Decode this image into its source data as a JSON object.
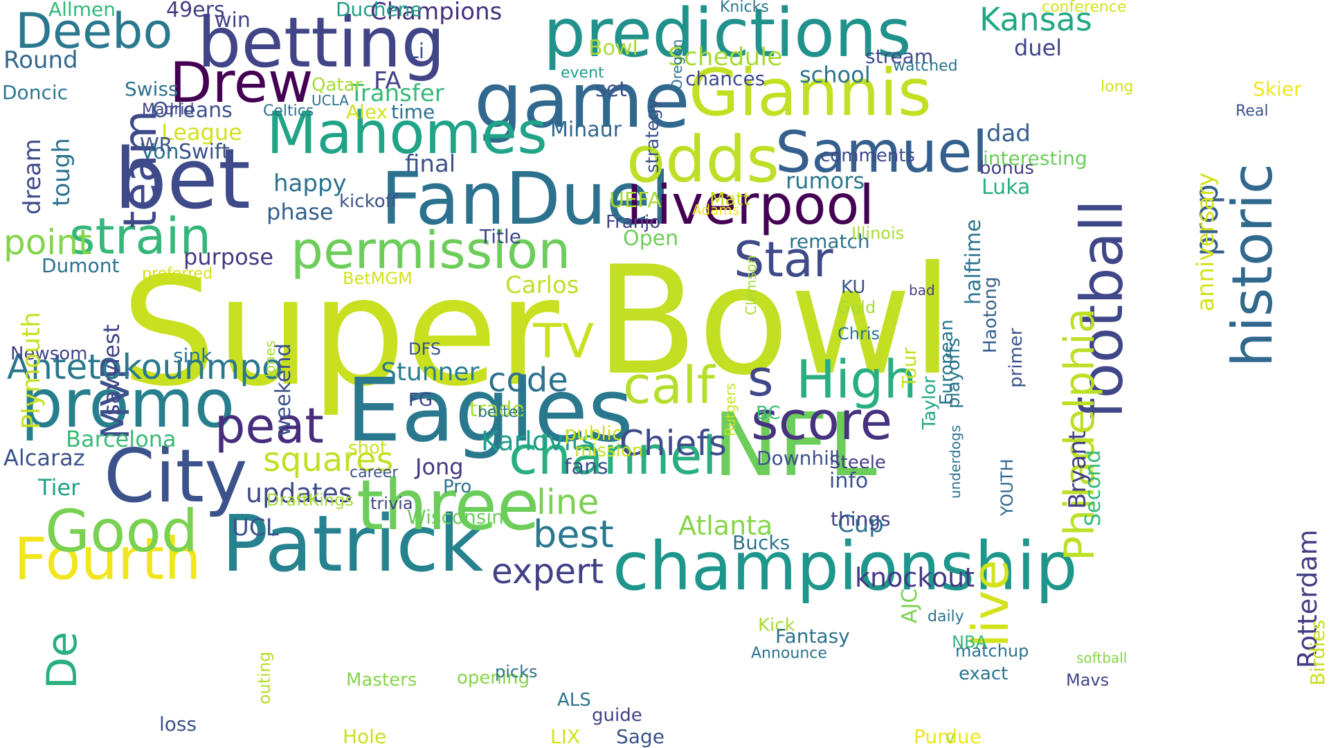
{
  "words": [
    {
      "text": "Super",
      "color": "#c8e020",
      "rotate": false
    },
    {
      "text": "Bowl",
      "color": "#c2df23",
      "rotate": false
    },
    {
      "text": "Eagles",
      "color": "#2a788e",
      "rotate": false
    },
    {
      "text": "NFL",
      "color": "#6ccd5a",
      "rotate": false
    },
    {
      "text": "bet",
      "color": "#3e4a89",
      "rotate": false
    },
    {
      "text": "predictions",
      "color": "#21918c",
      "rotate": false
    },
    {
      "text": "game",
      "color": "#31688e",
      "rotate": false
    },
    {
      "text": "championship",
      "color": "#1f968b",
      "rotate": false
    },
    {
      "text": "Patrick",
      "color": "#26828e",
      "rotate": false
    },
    {
      "text": "City",
      "color": "#3b528b",
      "rotate": false
    },
    {
      "text": "FanDuel",
      "color": "#2c728e",
      "rotate": false
    },
    {
      "text": "Liverpool",
      "color": "#440154",
      "rotate": false
    },
    {
      "text": "betting",
      "color": "#414487",
      "rotate": false
    },
    {
      "text": "Giannis",
      "color": "#c2df23",
      "rotate": false
    },
    {
      "text": "odds",
      "color": "#bddf26",
      "rotate": false
    },
    {
      "text": "three",
      "color": "#6ccd5a",
      "rotate": false
    },
    {
      "text": "football",
      "color": "#3f4788",
      "rotate": true
    },
    {
      "text": "historic",
      "color": "#31688e",
      "rotate": true
    },
    {
      "text": "promo",
      "color": "#277f8e",
      "rotate": false
    },
    {
      "text": "Mahomes",
      "color": "#20a386",
      "rotate": false
    },
    {
      "text": "Samuel",
      "color": "#355f8d",
      "rotate": false
    },
    {
      "text": "Drew",
      "color": "#440154",
      "rotate": false
    },
    {
      "text": "Deebo",
      "color": "#2a788e",
      "rotate": false
    },
    {
      "text": "permission",
      "color": "#6ccd5a",
      "rotate": false
    },
    {
      "text": "strain",
      "color": "#35b779",
      "rotate": false
    },
    {
      "text": "channel",
      "color": "#28ae80",
      "rotate": false
    },
    {
      "text": "score",
      "color": "#46327e",
      "rotate": false
    },
    {
      "text": "Fourth",
      "color": "#f1e51d",
      "rotate": false
    },
    {
      "text": "Good",
      "color": "#7ad151",
      "rotate": false
    },
    {
      "text": "calf",
      "color": "#b5de2b",
      "rotate": false
    },
    {
      "text": "High",
      "color": "#28ae80",
      "rotate": false
    },
    {
      "text": "peat",
      "color": "#472d7b",
      "rotate": false
    },
    {
      "text": "Star",
      "color": "#3e4a89",
      "rotate": false
    },
    {
      "text": "TV",
      "color": "#c8e020",
      "rotate": false
    },
    {
      "text": "live",
      "color": "#d2e21b",
      "rotate": true
    },
    {
      "text": "s",
      "color": "#3f4788",
      "rotate": false
    },
    {
      "text": "team",
      "color": "#3e4989",
      "rotate": true
    },
    {
      "text": "MVP",
      "color": "#3b528b",
      "rotate": true
    },
    {
      "text": "De",
      "color": "#29af7f",
      "rotate": true
    },
    {
      "text": "Antetokounmpo",
      "color": "#2a788e",
      "rotate": false
    },
    {
      "text": "Chiefs",
      "color": "#3e4a89",
      "rotate": false
    },
    {
      "text": "Philadelphia",
      "color": "#bddf26",
      "rotate": true
    },
    {
      "text": "expert",
      "color": "#424086",
      "rotate": false
    },
    {
      "text": "best",
      "color": "#2a788e",
      "rotate": false
    },
    {
      "text": "squares",
      "color": "#c2df23",
      "rotate": false
    },
    {
      "text": "code",
      "color": "#2c728e",
      "rotate": false
    },
    {
      "text": "line",
      "color": "#7ad151",
      "rotate": false
    },
    {
      "text": "point",
      "color": "#84d44b",
      "rotate": false
    },
    {
      "text": "Kansas",
      "color": "#22a785",
      "rotate": false
    },
    {
      "text": "Karlovits",
      "color": "#1f9e89",
      "rotate": false
    },
    {
      "text": "knockout",
      "color": "#443983",
      "rotate": false
    },
    {
      "text": "updates",
      "color": "#3e4a89",
      "rotate": false
    },
    {
      "text": "Atlanta",
      "color": "#86d549",
      "rotate": false
    },
    {
      "text": "prop",
      "color": "#355f8d",
      "rotate": true
    },
    {
      "text": "Barcelona",
      "color": "#3aba76",
      "rotate": false
    },
    {
      "text": "Stunner",
      "color": "#287d8e",
      "rotate": false
    },
    {
      "text": "purpose",
      "color": "#443a83",
      "rotate": false
    },
    {
      "text": "phase",
      "color": "#355f8d",
      "rotate": false
    },
    {
      "text": "final",
      "color": "#3b528b",
      "rotate": false
    },
    {
      "text": "happy",
      "color": "#2c728e",
      "rotate": false
    },
    {
      "text": "rumors",
      "color": "#2a788e",
      "rotate": false
    },
    {
      "text": "UCL",
      "color": "#3b528b",
      "rotate": false
    },
    {
      "text": "anniversary",
      "color": "#d2e21b",
      "rotate": true
    },
    {
      "text": "Rotterdam",
      "color": "#433e85",
      "rotate": true
    },
    {
      "text": "Schedule",
      "color": "#a8db34",
      "rotate": false
    },
    {
      "text": "Champions",
      "color": "#46307e",
      "rotate": false
    },
    {
      "text": "Transfer",
      "color": "#38b977",
      "rotate": false
    },
    {
      "text": "Alcaraz",
      "color": "#3b528b",
      "rotate": false
    },
    {
      "text": "Jong",
      "color": "#453781",
      "rotate": false
    },
    {
      "text": "Tier",
      "color": "#1fa187",
      "rotate": false
    },
    {
      "text": "Carlos",
      "color": "#bddf26",
      "rotate": false
    },
    {
      "text": "Round",
      "color": "#31688e",
      "rotate": false
    },
    {
      "text": "Doncic",
      "color": "#2a788e",
      "rotate": false
    },
    {
      "text": "Newsom",
      "color": "#414487",
      "rotate": false
    },
    {
      "text": "Plymouth",
      "color": "#c8e020",
      "rotate": true
    },
    {
      "text": "dream",
      "color": "#3e4a89",
      "rotate": true
    },
    {
      "text": "tough",
      "color": "#2c728e",
      "rotate": true
    },
    {
      "text": "savviest",
      "color": "#414487",
      "rotate": true
    },
    {
      "text": "weekend",
      "color": "#3b528b",
      "rotate": true
    },
    {
      "text": "Minaur",
      "color": "#31688e",
      "rotate": false
    },
    {
      "text": "dad",
      "color": "#355f8d",
      "rotate": false
    },
    {
      "text": "duel",
      "color": "#414487",
      "rotate": false
    },
    {
      "text": "school",
      "color": "#2c728e",
      "rotate": false
    },
    {
      "text": "stream",
      "color": "#3e4a89",
      "rotate": false
    },
    {
      "text": "Luka",
      "color": "#29af7f",
      "rotate": false
    },
    {
      "text": "bonus",
      "color": "#424086",
      "rotate": false
    },
    {
      "text": "rematch",
      "color": "#2c728e",
      "rotate": false
    },
    {
      "text": "Open",
      "color": "#6ccd5a",
      "rotate": false
    },
    {
      "text": "Cup",
      "color": "#2c728e",
      "rotate": false
    },
    {
      "text": "info",
      "color": "#3b528b",
      "rotate": false
    },
    {
      "text": "Steele",
      "color": "#433e85",
      "rotate": false
    },
    {
      "text": "Second",
      "color": "#35b779",
      "rotate": true
    },
    {
      "text": "Bryant",
      "color": "#433e85",
      "rotate": true
    },
    {
      "text": "playoffs",
      "color": "#2a788e",
      "rotate": true
    },
    {
      "text": "halftime",
      "color": "#2c728e",
      "rotate": true
    },
    {
      "text": "primer",
      "color": "#3b528b",
      "rotate": true
    },
    {
      "text": "Haotong",
      "color": "#355f8d",
      "rotate": true
    },
    {
      "text": "Taylor",
      "color": "#22a785",
      "rotate": true
    },
    {
      "text": "European",
      "color": "#2a788e",
      "rotate": true
    },
    {
      "text": "AJC",
      "color": "#7ad151",
      "rotate": true
    },
    {
      "text": "Tour",
      "color": "#c8e020",
      "rotate": true
    },
    {
      "text": "YOUTH",
      "color": "#31688e",
      "rotate": true
    },
    {
      "text": "underdogs",
      "color": "#2c728e",
      "rotate": true
    },
    {
      "text": "Birdies",
      "color": "#c8e020",
      "rotate": true
    },
    {
      "text": "strategy",
      "color": "#3b528b",
      "rotate": true
    },
    {
      "text": "Oregon",
      "color": "#2c728e",
      "rotate": true
    },
    {
      "text": "Clemson",
      "color": "#a8db34",
      "rotate": true
    },
    {
      "text": "Rutgers",
      "color": "#c8e020",
      "rotate": true
    },
    {
      "text": "Jones",
      "color": "#a8db34",
      "rotate": true
    },
    {
      "text": "outing",
      "color": "#b5de2b",
      "rotate": true
    },
    {
      "text": "Swift",
      "color": "#3b528b",
      "rotate": false
    },
    {
      "text": "Von",
      "color": "#2c728e",
      "rotate": false
    },
    {
      "text": "League",
      "color": "#d2e21b",
      "rotate": false
    },
    {
      "text": "Orleans",
      "color": "#3b528b",
      "rotate": false
    },
    {
      "text": "Celtics",
      "color": "#2c728e",
      "rotate": false
    },
    {
      "text": "Alex",
      "color": "#d2e21b",
      "rotate": false
    },
    {
      "text": "time",
      "color": "#2c728e",
      "rotate": false
    },
    {
      "text": "FA",
      "color": "#433e85",
      "rotate": false
    },
    {
      "text": "Qatar",
      "color": "#a8db34",
      "rotate": false
    },
    {
      "text": "UCLA",
      "color": "#2c728e",
      "rotate": false
    },
    {
      "text": "Li",
      "color": "#3b528b",
      "rotate": false
    },
    {
      "text": "win",
      "color": "#414487",
      "rotate": false
    },
    {
      "text": "49ers",
      "color": "#433e85",
      "rotate": false
    },
    {
      "text": "Allmen",
      "color": "#35b779",
      "rotate": false
    },
    {
      "text": "Duchene",
      "color": "#1f9e89",
      "rotate": false
    },
    {
      "text": "Knicks",
      "color": "#2c728e",
      "rotate": false
    },
    {
      "text": "conference",
      "color": "#d2e21b",
      "rotate": false
    },
    {
      "text": "watched",
      "color": "#2c728e",
      "rotate": false
    },
    {
      "text": "long",
      "color": "#d2e21b",
      "rotate": false
    },
    {
      "text": "Skier",
      "color": "#f1e51d",
      "rotate": false
    },
    {
      "text": "Real",
      "color": "#3b528b",
      "rotate": false
    },
    {
      "text": "chances",
      "color": "#3e4a89",
      "rotate": false
    },
    {
      "text": "event",
      "color": "#1f9e89",
      "rotate": false
    },
    {
      "text": "set",
      "color": "#3b528b",
      "rotate": false
    },
    {
      "text": "Bowl",
      "color": "#a8db34",
      "rotate": false
    },
    {
      "text": "Swiss",
      "color": "#2c728e",
      "rotate": false
    },
    {
      "text": "Madrid",
      "color": "#414487",
      "rotate": false
    },
    {
      "text": "WR",
      "color": "#3b528b",
      "rotate": false
    },
    {
      "text": "interesting",
      "color": "#6ccd5a",
      "rotate": false
    },
    {
      "text": "comments",
      "color": "#3e4a89",
      "rotate": false
    },
    {
      "text": "kickoff",
      "color": "#3b528b",
      "rotate": false
    },
    {
      "text": "Matt",
      "color": "#c8e020",
      "rotate": false
    },
    {
      "text": "Adams",
      "color": "#f1e51d",
      "rotate": false
    },
    {
      "text": "UEFA",
      "color": "#a8db34",
      "rotate": false
    },
    {
      "text": "Title",
      "color": "#3e4a89",
      "rotate": false
    },
    {
      "text": "Franjo",
      "color": "#414487",
      "rotate": false
    },
    {
      "text": "Illinois",
      "color": "#a8db34",
      "rotate": false
    },
    {
      "text": "Dumont",
      "color": "#2c728e",
      "rotate": false
    },
    {
      "text": "preferred",
      "color": "#d2e21b",
      "rotate": false
    },
    {
      "text": "BetMGM",
      "color": "#d2e21b",
      "rotate": false
    },
    {
      "text": "KU",
      "color": "#3b528b",
      "rotate": false
    },
    {
      "text": "bad",
      "color": "#433e85",
      "rotate": false
    },
    {
      "text": "Gold",
      "color": "#a8db34",
      "rotate": false
    },
    {
      "text": "Chris",
      "color": "#2c728e",
      "rotate": false
    },
    {
      "text": "sink",
      "color": "#2c728e",
      "rotate": false
    },
    {
      "text": "DFS",
      "color": "#3b528b",
      "rotate": false
    },
    {
      "text": "trade",
      "color": "#a8db34",
      "rotate": false
    },
    {
      "text": "public",
      "color": "#d2e21b",
      "rotate": false
    },
    {
      "text": "BC",
      "color": "#3aba76",
      "rotate": false
    },
    {
      "text": "FG",
      "color": "#414487",
      "rotate": false
    },
    {
      "text": "mission",
      "color": "#c8e020",
      "rotate": false
    },
    {
      "text": "fans",
      "color": "#3b528b",
      "rotate": false
    },
    {
      "text": "Downhill",
      "color": "#3b528b",
      "rotate": false
    },
    {
      "text": "shot",
      "color": "#c8e020",
      "rotate": false
    },
    {
      "text": "Pro",
      "color": "#2c728e",
      "rotate": false
    },
    {
      "text": "better",
      "color": "#2c728e",
      "rotate": false
    },
    {
      "text": "career",
      "color": "#3b528b",
      "rotate": false
    },
    {
      "text": "trivia",
      "color": "#414487",
      "rotate": false
    },
    {
      "text": "DraftKings",
      "color": "#a8db34",
      "rotate": false
    },
    {
      "text": "Wisconsin",
      "color": "#6ccd5a",
      "rotate": false
    },
    {
      "text": "things",
      "color": "#414487",
      "rotate": false
    },
    {
      "text": "Bucks",
      "color": "#2c728e",
      "rotate": false
    },
    {
      "text": "Kick",
      "color": "#a8db34",
      "rotate": false
    },
    {
      "text": "daily",
      "color": "#2c728e",
      "rotate": false
    },
    {
      "text": "NBA",
      "color": "#35b779",
      "rotate": false
    },
    {
      "text": "Fantasy",
      "color": "#2c728e",
      "rotate": false
    },
    {
      "text": "Announce",
      "color": "#2c728e",
      "rotate": false
    },
    {
      "text": "matchup",
      "color": "#2c728e",
      "rotate": false
    },
    {
      "text": "softball",
      "color": "#86d549",
      "rotate": false
    },
    {
      "text": "Mavs",
      "color": "#414487",
      "rotate": false
    },
    {
      "text": "exact",
      "color": "#2c728e",
      "rotate": false
    },
    {
      "text": "Masters",
      "color": "#86d549",
      "rotate": false
    },
    {
      "text": "opening",
      "color": "#86d549",
      "rotate": false
    },
    {
      "text": "picks",
      "color": "#2c728e",
      "rotate": false
    },
    {
      "text": "ALS",
      "color": "#2c728e",
      "rotate": false
    },
    {
      "text": "guide",
      "color": "#414487",
      "rotate": false
    },
    {
      "text": "Sage",
      "color": "#3b528b",
      "rotate": false
    },
    {
      "text": "Hole",
      "color": "#c8e020",
      "rotate": false
    },
    {
      "text": "loss",
      "color": "#3b528b",
      "rotate": false
    },
    {
      "text": "LIX",
      "color": "#d2e21b",
      "rotate": false
    },
    {
      "text": "Purdue",
      "color": "#f1e51d",
      "rotate": false
    },
    {
      "text": "v",
      "color": "#a8db34",
      "rotate": false
    }
  ]
}
